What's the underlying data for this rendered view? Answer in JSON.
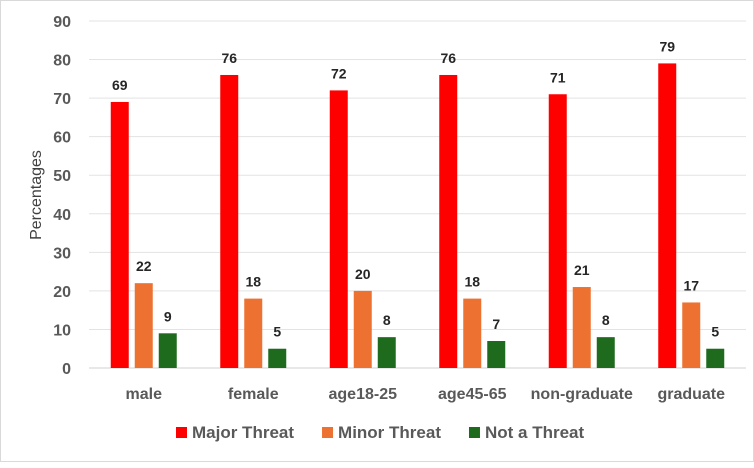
{
  "chart_data": {
    "type": "bar",
    "title": "",
    "xlabel": "",
    "ylabel": "Percentages",
    "ylim": [
      0,
      90
    ],
    "yticks": [
      0,
      10,
      20,
      30,
      40,
      50,
      60,
      70,
      80,
      90
    ],
    "grid": true,
    "legend_position": "bottom",
    "categories": [
      "male",
      "female",
      "age18-25",
      "age45-65",
      "non-graduate",
      "graduate"
    ],
    "series": [
      {
        "name": "Major Threat",
        "color": "#ff0000",
        "values": [
          69,
          76,
          72,
          76,
          71,
          79
        ]
      },
      {
        "name": "Minor Threat",
        "color": "#ed7131",
        "values": [
          22,
          18,
          20,
          18,
          21,
          17
        ]
      },
      {
        "name": "Not a Threat",
        "color": "#1e6b1e",
        "values": [
          9,
          5,
          8,
          7,
          8,
          5
        ]
      }
    ]
  }
}
